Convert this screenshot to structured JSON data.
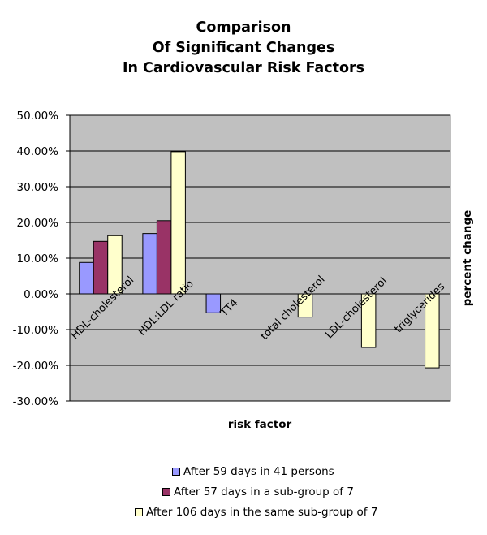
{
  "chart_data": {
    "type": "bar",
    "title_lines": [
      "Comparison",
      "Of Significant Changes",
      "In Cardiovascular Risk Factors"
    ],
    "xlabel": "risk factor",
    "ylabel": "percent change",
    "categories": [
      "HDL-cholesterol",
      "HDL:LDL ratio",
      "TT4",
      "total cholesterol",
      "LDL-cholesterol",
      "triglycerides"
    ],
    "series": [
      {
        "name": "After 59 days in 41 persons",
        "color": "#9999ff",
        "values": [
          8.8,
          16.9,
          -5.3,
          null,
          null,
          null
        ]
      },
      {
        "name": "After 57 days in a sub-group of 7",
        "color": "#993366",
        "values": [
          14.7,
          20.5,
          null,
          null,
          null,
          null
        ]
      },
      {
        "name": "After 106 days in the same sub-group of 7",
        "color": "#ffffcc",
        "values": [
          16.3,
          39.8,
          null,
          -6.5,
          -15.0,
          -20.7
        ]
      }
    ],
    "ylim": [
      -30,
      50
    ],
    "yticks": [
      50,
      40,
      30,
      20,
      10,
      0,
      -10,
      -20,
      -30
    ],
    "ytick_labels": [
      "50.00%",
      "40.00%",
      "30.00%",
      "20.00%",
      "10.00%",
      "0.00%",
      "-10.00%",
      "-20.00%",
      "-30.00%"
    ],
    "grid": true,
    "plot_background": "#c0c0c0",
    "legend_position": "bottom"
  }
}
